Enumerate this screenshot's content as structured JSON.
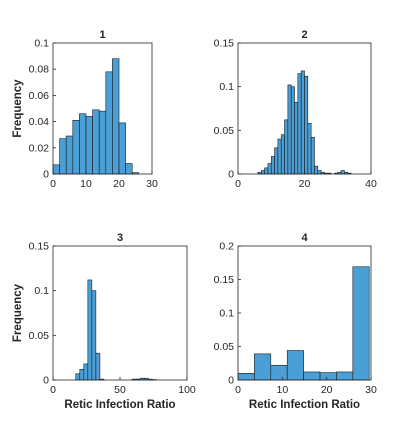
{
  "chart_data": [
    {
      "type": "bar",
      "title": "1",
      "xlabel": "",
      "ylabel": "Frequency",
      "xlim": [
        0,
        30
      ],
      "ylim": [
        0,
        0.1
      ],
      "xticks": [
        "0",
        "10",
        "20",
        "30"
      ],
      "yticks": [
        "0",
        "0.02",
        "0.04",
        "0.06",
        "0.08",
        "0.1"
      ],
      "bin_width": 2,
      "bin_starts": [
        0,
        2,
        4,
        6,
        8,
        10,
        12,
        14,
        16,
        18,
        20,
        22,
        24
      ],
      "values": [
        0.007,
        0.027,
        0.029,
        0.041,
        0.046,
        0.044,
        0.049,
        0.048,
        0.078,
        0.088,
        0.039,
        0.008,
        0.001
      ]
    },
    {
      "type": "bar",
      "title": "2",
      "xlabel": "",
      "ylabel": "",
      "xlim": [
        0,
        40
      ],
      "ylim": [
        0,
        0.15
      ],
      "xticks": [
        "0",
        "20",
        "40"
      ],
      "yticks": [
        "0",
        "0.05",
        "0.1",
        "0.15"
      ],
      "bin_width": 1,
      "bin_starts": [
        6,
        7,
        8,
        9,
        10,
        11,
        12,
        13,
        14,
        15,
        16,
        17,
        18,
        19,
        20,
        21,
        22,
        23,
        24,
        25,
        26,
        27,
        28,
        29,
        30,
        31,
        32,
        33
      ],
      "values": [
        0.002,
        0.004,
        0.007,
        0.012,
        0.02,
        0.03,
        0.04,
        0.045,
        0.062,
        0.102,
        0.1,
        0.082,
        0.115,
        0.118,
        0.112,
        0.058,
        0.042,
        0.009,
        0.004,
        0.002,
        0.001,
        0.001,
        0.0,
        0.001,
        0.002,
        0.004,
        0.002,
        0.001
      ]
    },
    {
      "type": "bar",
      "title": "3",
      "xlabel": "Retic Infection Ratio",
      "ylabel": "Frequency",
      "xlim": [
        0,
        100
      ],
      "ylim": [
        0,
        0.15
      ],
      "xticks": [
        "0",
        "50",
        "100"
      ],
      "yticks": [
        "0",
        "0.05",
        "0.1",
        "0.15"
      ],
      "bin_width": 3,
      "bin_starts": [
        17,
        20,
        23,
        26,
        29,
        32,
        35,
        59,
        62,
        65,
        68,
        71,
        74
      ],
      "values": [
        0.007,
        0.012,
        0.018,
        0.112,
        0.1,
        0.03,
        0.001,
        0.001,
        0.001,
        0.002,
        0.002,
        0.001,
        0.0005
      ]
    },
    {
      "type": "bar",
      "title": "4",
      "xlabel": "Retic Infection Ratio",
      "ylabel": "",
      "xlim": [
        0,
        30
      ],
      "ylim": [
        0,
        0.2
      ],
      "xticks": [
        "0",
        "10",
        "20",
        "30"
      ],
      "yticks": [
        "0",
        "0.05",
        "0.1",
        "0.15",
        "0.2"
      ],
      "bin_width": 3.7,
      "bin_starts": [
        0,
        3.7,
        7.4,
        11.1,
        14.8,
        18.5,
        22.2,
        25.9
      ],
      "values": [
        0.01,
        0.039,
        0.022,
        0.044,
        0.012,
        0.011,
        0.012,
        0.169
      ]
    }
  ]
}
